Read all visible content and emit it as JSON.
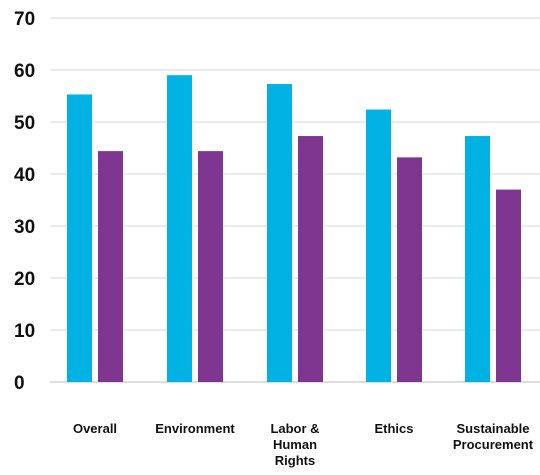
{
  "chart_data": {
    "type": "bar",
    "categories": [
      [
        "Overall"
      ],
      [
        "Environment"
      ],
      [
        "Labor &",
        "Human",
        "Rights"
      ],
      [
        "Ethics"
      ],
      [
        "Sustainable",
        "Procurement"
      ]
    ],
    "series": [
      {
        "color": "#00b2e3",
        "values": [
          55.3,
          59.0,
          57.3,
          52.4,
          47.3
        ]
      },
      {
        "color": "#7f3691",
        "values": [
          44.4,
          44.4,
          47.3,
          43.2,
          37.0
        ]
      }
    ],
    "yticks": [
      0,
      10,
      20,
      30,
      40,
      50,
      60,
      70
    ],
    "ylim": [
      0,
      70
    ],
    "grid": true,
    "legend": false,
    "title": "",
    "xlabel": "",
    "ylabel": ""
  }
}
